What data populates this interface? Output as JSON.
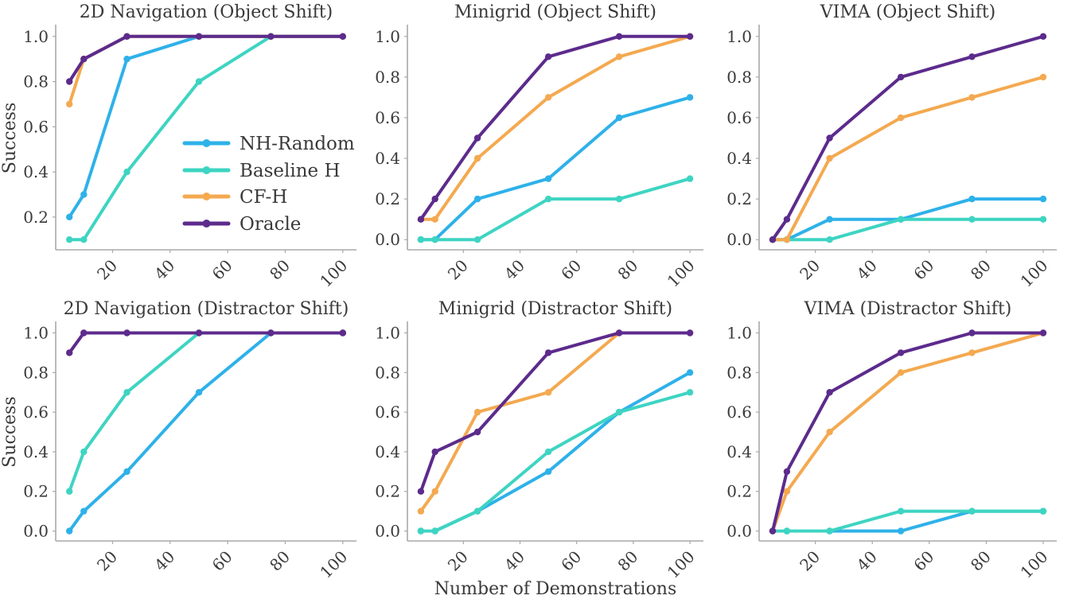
{
  "figure": {
    "xlabel": "Number of Demonstrations",
    "ylabel": "Success",
    "legend_entries": [
      "NH-Random",
      "Baseline H",
      "CF-H",
      "Oracle"
    ],
    "series_colors": {
      "NH-Random": "#2EB1E9",
      "Baseline H": "#3ED4C2",
      "CF-H": "#F4A950",
      "Oracle": "#5C2B8C"
    },
    "axis_color": "#A9A9A9",
    "text_color": "#3A3A3A",
    "background_color": "#FFFFFF"
  },
  "chart_data": [
    {
      "type": "line",
      "title": "2D Navigation (Object Shift)",
      "x": [
        5,
        10,
        25,
        50,
        75,
        100
      ],
      "xticks": [
        20,
        40,
        60,
        80,
        100
      ],
      "yticks": [
        0.2,
        0.4,
        0.6,
        0.8,
        1.0
      ],
      "xlim": [
        0.25,
        104.75
      ],
      "ylim": [
        0.055,
        1.045
      ],
      "grid": false,
      "legend_here": true,
      "ylabel": "Success",
      "xlabel": "",
      "series": [
        {
          "name": "NH-Random",
          "values": [
            0.2,
            0.3,
            0.9,
            1.0,
            1.0,
            1.0
          ]
        },
        {
          "name": "Baseline H",
          "values": [
            0.1,
            0.1,
            0.4,
            0.8,
            1.0,
            1.0
          ]
        },
        {
          "name": "CF-H",
          "values": [
            0.7,
            0.9,
            1.0,
            1.0,
            1.0,
            1.0
          ]
        },
        {
          "name": "Oracle",
          "values": [
            0.8,
            0.9,
            1.0,
            1.0,
            1.0,
            1.0
          ]
        }
      ]
    },
    {
      "type": "line",
      "title": "Minigrid (Object Shift)",
      "x": [
        5,
        10,
        25,
        50,
        75,
        100
      ],
      "xticks": [
        20,
        40,
        60,
        80,
        100
      ],
      "yticks": [
        0.0,
        0.2,
        0.4,
        0.6,
        0.8,
        1.0
      ],
      "xlim": [
        0.25,
        104.75
      ],
      "ylim": [
        -0.05,
        1.05
      ],
      "grid": false,
      "legend_here": false,
      "ylabel": "",
      "xlabel": "",
      "series": [
        {
          "name": "NH-Random",
          "values": [
            0.0,
            0.0,
            0.2,
            0.3,
            0.6,
            0.7
          ]
        },
        {
          "name": "Baseline H",
          "values": [
            0.0,
            0.0,
            0.0,
            0.2,
            0.2,
            0.3
          ]
        },
        {
          "name": "CF-H",
          "values": [
            0.1,
            0.1,
            0.4,
            0.7,
            0.9,
            1.0
          ]
        },
        {
          "name": "Oracle",
          "values": [
            0.1,
            0.2,
            0.5,
            0.9,
            1.0,
            1.0
          ]
        }
      ]
    },
    {
      "type": "line",
      "title": "VIMA (Object Shift)",
      "x": [
        5,
        10,
        25,
        50,
        75,
        100
      ],
      "xticks": [
        20,
        40,
        60,
        80,
        100
      ],
      "yticks": [
        0.0,
        0.2,
        0.4,
        0.6,
        0.8,
        1.0
      ],
      "xlim": [
        0.25,
        104.75
      ],
      "ylim": [
        -0.05,
        1.05
      ],
      "grid": false,
      "legend_here": false,
      "ylabel": "",
      "xlabel": "",
      "series": [
        {
          "name": "NH-Random",
          "values": [
            0.0,
            0.0,
            0.1,
            0.1,
            0.2,
            0.2
          ]
        },
        {
          "name": "Baseline H",
          "values": [
            0.0,
            0.0,
            0.0,
            0.1,
            0.1,
            0.1
          ]
        },
        {
          "name": "CF-H",
          "values": [
            0.0,
            0.0,
            0.4,
            0.6,
            0.7,
            0.8
          ]
        },
        {
          "name": "Oracle",
          "values": [
            0.0,
            0.1,
            0.5,
            0.8,
            0.9,
            1.0
          ]
        }
      ]
    },
    {
      "type": "line",
      "title": "2D Navigation (Distractor Shift)",
      "x": [
        5,
        10,
        25,
        50,
        75,
        100
      ],
      "xticks": [
        20,
        40,
        60,
        80,
        100
      ],
      "yticks": [
        0.0,
        0.2,
        0.4,
        0.6,
        0.8,
        1.0
      ],
      "xlim": [
        0.25,
        104.75
      ],
      "ylim": [
        -0.05,
        1.05
      ],
      "grid": false,
      "legend_here": false,
      "ylabel": "Success",
      "xlabel": "",
      "series": [
        {
          "name": "NH-Random",
          "values": [
            0.0,
            0.1,
            0.3,
            0.7,
            1.0,
            1.0
          ]
        },
        {
          "name": "Baseline H",
          "values": [
            0.2,
            0.4,
            0.7,
            1.0,
            1.0,
            1.0
          ]
        },
        {
          "name": "CF-H",
          "values": [
            0.9,
            1.0,
            1.0,
            1.0,
            1.0,
            1.0
          ]
        },
        {
          "name": "Oracle",
          "values": [
            0.9,
            1.0,
            1.0,
            1.0,
            1.0,
            1.0
          ]
        }
      ]
    },
    {
      "type": "line",
      "title": "Minigrid (Distractor Shift)",
      "x": [
        5,
        10,
        25,
        50,
        75,
        100
      ],
      "xticks": [
        20,
        40,
        60,
        80,
        100
      ],
      "yticks": [
        0.0,
        0.2,
        0.4,
        0.6,
        0.8,
        1.0
      ],
      "xlim": [
        0.25,
        104.75
      ],
      "ylim": [
        -0.05,
        1.05
      ],
      "grid": false,
      "legend_here": false,
      "ylabel": "",
      "xlabel": "Number of Demonstrations",
      "series": [
        {
          "name": "NH-Random",
          "values": [
            0.0,
            0.0,
            0.1,
            0.3,
            0.6,
            0.8
          ]
        },
        {
          "name": "Baseline H",
          "values": [
            0.0,
            0.0,
            0.1,
            0.4,
            0.6,
            0.7
          ]
        },
        {
          "name": "CF-H",
          "values": [
            0.1,
            0.2,
            0.6,
            0.7,
            1.0,
            1.0
          ]
        },
        {
          "name": "Oracle",
          "values": [
            0.2,
            0.4,
            0.5,
            0.9,
            1.0,
            1.0
          ]
        }
      ]
    },
    {
      "type": "line",
      "title": "VIMA (Distractor Shift)",
      "x": [
        5,
        10,
        25,
        50,
        75,
        100
      ],
      "xticks": [
        20,
        40,
        60,
        80,
        100
      ],
      "yticks": [
        0.0,
        0.2,
        0.4,
        0.6,
        0.8,
        1.0
      ],
      "xlim": [
        0.25,
        104.75
      ],
      "ylim": [
        -0.05,
        1.05
      ],
      "grid": false,
      "legend_here": false,
      "ylabel": "",
      "xlabel": "",
      "series": [
        {
          "name": "NH-Random",
          "values": [
            0.0,
            0.0,
            0.0,
            0.0,
            0.1,
            0.1
          ]
        },
        {
          "name": "Baseline H",
          "values": [
            0.0,
            0.0,
            0.0,
            0.1,
            0.1,
            0.1
          ]
        },
        {
          "name": "CF-H",
          "values": [
            0.0,
            0.2,
            0.5,
            0.8,
            0.9,
            1.0
          ]
        },
        {
          "name": "Oracle",
          "values": [
            0.0,
            0.3,
            0.7,
            0.9,
            1.0,
            1.0
          ]
        }
      ]
    }
  ]
}
